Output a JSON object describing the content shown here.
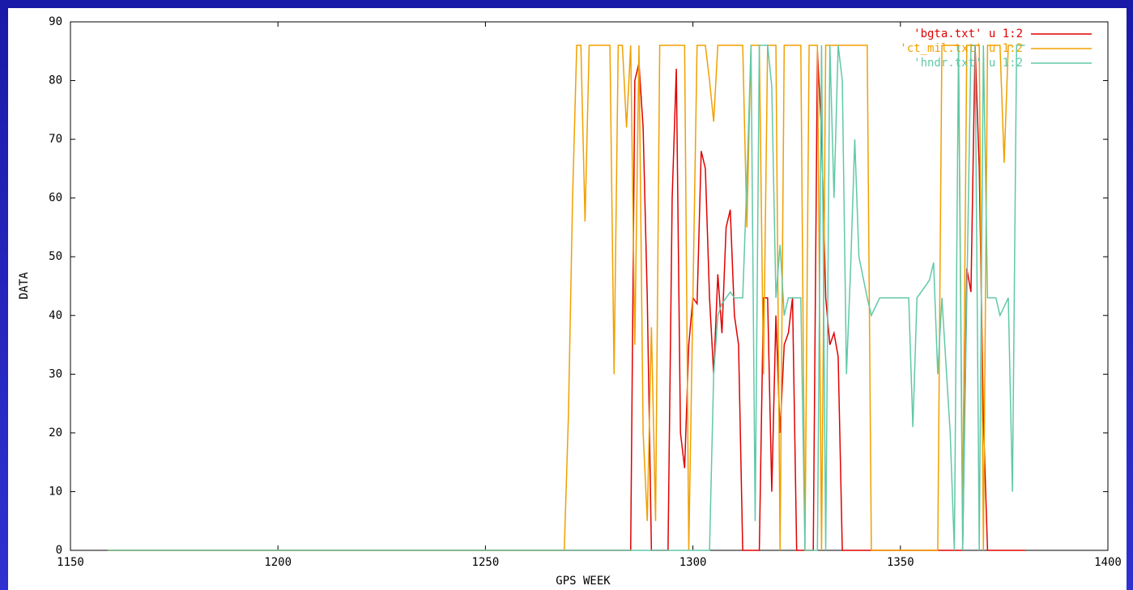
{
  "chart_data": {
    "type": "line",
    "xlabel": "GPS WEEK",
    "ylabel": "DATA",
    "xlim": [
      1150,
      1400
    ],
    "xticks": [
      1150,
      1200,
      1250,
      1300,
      1350,
      1400
    ],
    "ylim": [
      0,
      90
    ],
    "yticks": [
      0,
      10,
      20,
      30,
      40,
      50,
      60,
      70,
      80,
      90
    ],
    "legend": "top-right",
    "series": [
      {
        "name": "'bgta.txt' u 1:2",
        "color": "#e00000",
        "x": [
          1159,
          1285,
          1286,
          1287,
          1288,
          1289,
          1290,
          1294,
          1295,
          1296,
          1297,
          1298,
          1299,
          1300,
          1301,
          1302,
          1303,
          1304,
          1305,
          1306,
          1307,
          1308,
          1309,
          1310,
          1311,
          1312,
          1316,
          1317,
          1318,
          1319,
          1320,
          1321,
          1322,
          1323,
          1324,
          1325,
          1329,
          1330,
          1331,
          1332,
          1333,
          1334,
          1335,
          1336,
          1365,
          1366,
          1367,
          1368,
          1369,
          1370,
          1371,
          1380
        ],
        "values": [
          0,
          0,
          80,
          83,
          72,
          43,
          0,
          0,
          60,
          82,
          20,
          14,
          35,
          43,
          42,
          68,
          65,
          43,
          30,
          47,
          37,
          55,
          58,
          40,
          35,
          0,
          0,
          43,
          43,
          10,
          40,
          20,
          35,
          37,
          43,
          0,
          0,
          85,
          71,
          43,
          35,
          37,
          33,
          0,
          0,
          48,
          44,
          86,
          65,
          22,
          0,
          0
        ]
      },
      {
        "name": "'ct_mil.txt' u 1:2",
        "color": "#f0a000",
        "x": [
          1159,
          1269,
          1270,
          1271,
          1272,
          1273,
          1274,
          1275,
          1280,
          1281,
          1282,
          1283,
          1284,
          1285,
          1286,
          1287,
          1288,
          1289,
          1290,
          1291,
          1292,
          1298,
          1299,
          1300,
          1301,
          1303,
          1304,
          1305,
          1306,
          1312,
          1313,
          1314,
          1316,
          1317,
          1318,
          1320,
          1321,
          1322,
          1326,
          1327,
          1328,
          1330,
          1331,
          1332,
          1342,
          1343,
          1359,
          1360,
          1364,
          1365,
          1366,
          1369,
          1370,
          1371,
          1374,
          1375,
          1376,
          1377
        ],
        "values": [
          0,
          0,
          23,
          60,
          86,
          86,
          56,
          86,
          86,
          30,
          86,
          86,
          72,
          86,
          35,
          86,
          20,
          5,
          38,
          5,
          86,
          86,
          0,
          43,
          86,
          86,
          80,
          73,
          86,
          86,
          55,
          86,
          86,
          30,
          86,
          86,
          0,
          86,
          86,
          0,
          86,
          86,
          0,
          86,
          86,
          0,
          0,
          86,
          86,
          5,
          86,
          86,
          0,
          86,
          86,
          66,
          86,
          86
        ]
      },
      {
        "name": "'hndr.txt' u 1:2",
        "color": "#60c8a8",
        "x": [
          1159,
          1304,
          1305,
          1306,
          1307,
          1308,
          1309,
          1310,
          1312,
          1313,
          1314,
          1315,
          1316,
          1318,
          1319,
          1320,
          1321,
          1322,
          1323,
          1324,
          1326,
          1327,
          1330,
          1331,
          1332,
          1333,
          1334,
          1335,
          1336,
          1337,
          1338,
          1339,
          1340,
          1342,
          1343,
          1345,
          1352,
          1353,
          1354,
          1357,
          1358,
          1359,
          1360,
          1362,
          1363,
          1364,
          1365,
          1367,
          1368,
          1369,
          1370,
          1371,
          1373,
          1374,
          1376,
          1377,
          1378,
          1380
        ],
        "values": [
          0,
          0,
          30,
          40,
          42,
          43,
          44,
          43,
          43,
          63,
          86,
          5,
          86,
          86,
          79,
          43,
          52,
          40,
          43,
          43,
          43,
          0,
          0,
          86,
          0,
          86,
          60,
          86,
          80,
          30,
          48,
          70,
          50,
          43,
          40,
          43,
          43,
          21,
          43,
          46,
          49,
          30,
          43,
          20,
          0,
          86,
          0,
          86,
          86,
          0,
          86,
          43,
          43,
          40,
          43,
          10,
          86,
          86
        ]
      }
    ]
  }
}
